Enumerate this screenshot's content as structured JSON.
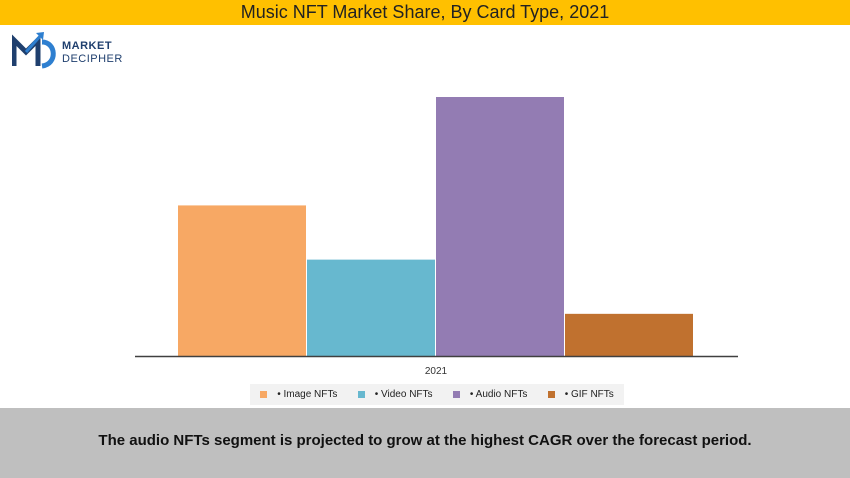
{
  "header": {
    "title": "Music NFT Market Share, By Card Type, 2021"
  },
  "logo": {
    "line1": "MARKET",
    "line2": "DECIPHER",
    "icon": "md-logo-icon",
    "colors": {
      "primary": "#1f3f6e",
      "accent": "#2e7fd0"
    }
  },
  "chart_data": {
    "type": "bar",
    "categories": [
      "2021"
    ],
    "series": [
      {
        "name": "• Image NFTs",
        "values": [
          25
        ],
        "color": "#f7a864"
      },
      {
        "name": "• Video NFTs",
        "values": [
          16
        ],
        "color": "#67b8cf"
      },
      {
        "name": "• Audio NFTs",
        "values": [
          43
        ],
        "color": "#937cb3"
      },
      {
        "name": "• GIF NFTs",
        "values": [
          7
        ],
        "color": "#c0712f"
      }
    ],
    "ylim": [
      0,
      43
    ],
    "grid": false,
    "legend": "bottom"
  },
  "footer": {
    "text": "The audio NFTs segment is projected to grow at the highest CAGR over the forecast period."
  }
}
